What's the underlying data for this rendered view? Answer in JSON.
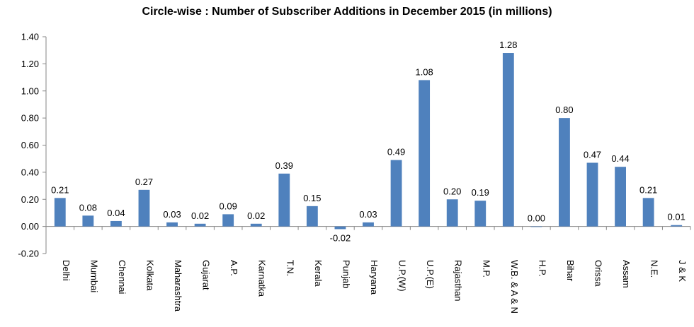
{
  "chart_data": {
    "type": "bar",
    "title": "Circle-wise : Number of Subscriber Additions in December 2015 (in millions)",
    "xlabel": "",
    "ylabel": "",
    "categories": [
      "Delhi",
      "Mumbai",
      "Chennai",
      "Kolkata",
      "Maharashtra",
      "Gujarat",
      "A.P.",
      "Karnatka",
      "T.N.",
      "Kerala",
      "Punjab",
      "Haryana",
      "U.P.(W)",
      "U.P.(E)",
      "Rajasthan",
      "M.P.",
      "W.B. & A & N",
      "H.P.",
      "Bihar",
      "Orissa",
      "Assam",
      "N.E.",
      "J & K"
    ],
    "values": [
      0.21,
      0.08,
      0.04,
      0.27,
      0.03,
      0.02,
      0.09,
      0.02,
      0.39,
      0.15,
      -0.02,
      0.03,
      0.49,
      1.08,
      0.2,
      0.19,
      1.28,
      0.0,
      0.8,
      0.47,
      0.44,
      0.21,
      0.01
    ],
    "data_labels": [
      "0.21",
      "0.08",
      "0.04",
      "0.27",
      "0.03",
      "0.02",
      "0.09",
      "0.02",
      "0.39",
      "0.15",
      "-0.02",
      "0.03",
      "0.49",
      "1.08",
      "0.20",
      "0.19",
      "1.28",
      "0.00",
      "0.80",
      "0.47",
      "0.44",
      "0.21",
      "0.01"
    ],
    "yticks": [
      "-0.20",
      "0.00",
      "0.20",
      "0.40",
      "0.60",
      "0.80",
      "1.00",
      "1.20",
      "1.40"
    ],
    "ylim": [
      -0.2,
      1.4
    ],
    "grid": false,
    "legend": "none",
    "bar_color": "#4f81bd",
    "axis_color": "#868686"
  }
}
